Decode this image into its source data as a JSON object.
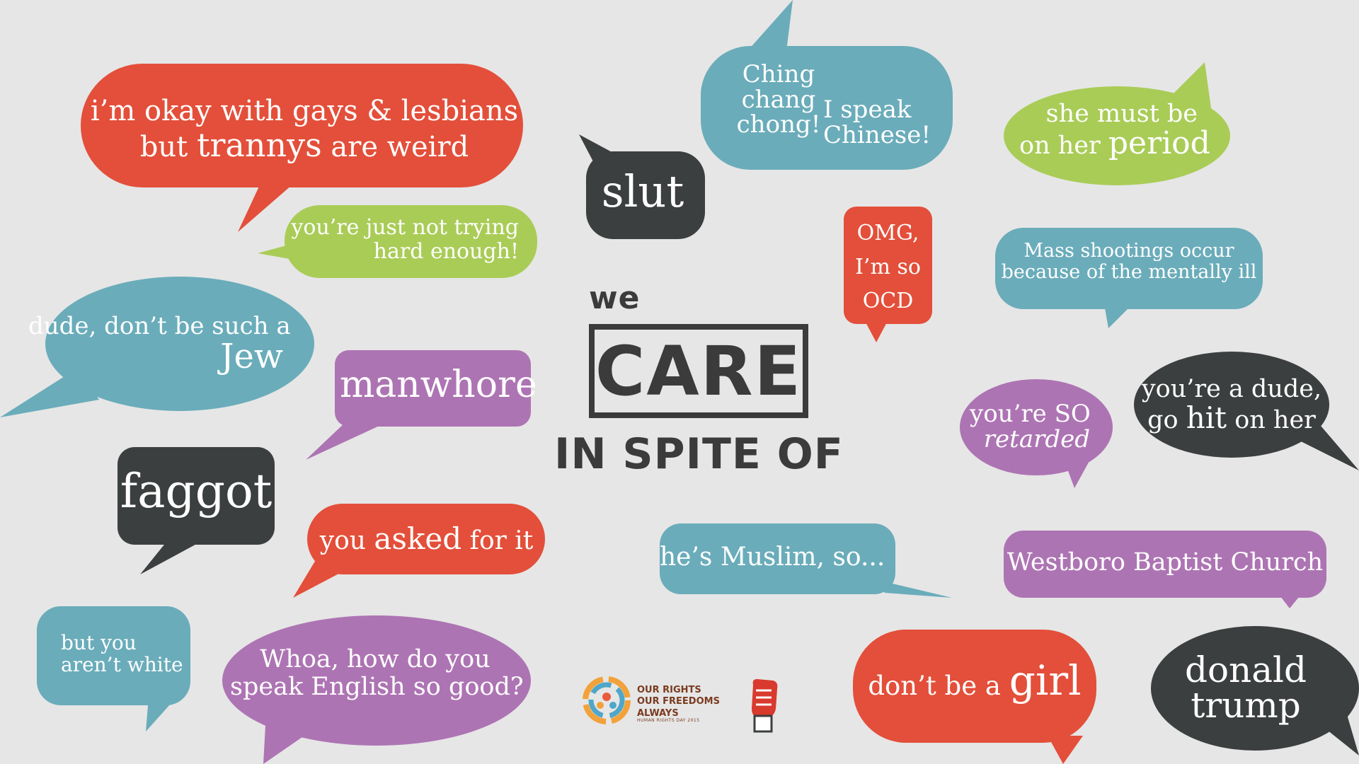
{
  "slogan": {
    "we": "we",
    "care": "CARE",
    "in_spite_of": "IN SPITE OF"
  },
  "bubbles": {
    "trannys": {
      "line1": "i’m okay with gays & lesbians",
      "line2_pre": "but ",
      "line2_big": "trannys",
      "line2_post": " are weird"
    },
    "trying": {
      "line1": "you’re just not trying",
      "line2": "hard enough!"
    },
    "jew": {
      "line1": "dude, don’t be such a",
      "line2": "Jew"
    },
    "manwhore": {
      "text": "manwhore"
    },
    "faggot": {
      "text": "faggot"
    },
    "asked": {
      "pre": "you ",
      "big": "asked",
      "post": " for it"
    },
    "white": {
      "line1": "but you",
      "line2": "aren’t white"
    },
    "english": {
      "line1": "Whoa, how do you",
      "line2": "speak English so good?"
    },
    "slut": {
      "text": "slut"
    },
    "ching": {
      "line1": "Ching",
      "line2": "chang",
      "line3": "chong!"
    },
    "chinese": {
      "line1": "I speak",
      "line2": "Chinese!"
    },
    "ocd": {
      "line1": "OMG,",
      "line2": "I’m so",
      "line3": "OCD"
    },
    "period": {
      "line1": "she must be",
      "line2_pre": "on her ",
      "line2_big": "period"
    },
    "shootings": {
      "line1": "Mass shootings occur",
      "line2": "because of the mentally ill"
    },
    "retarded": {
      "line1": "you’re SO",
      "line2": "retarded"
    },
    "dude": {
      "line1": "you’re a dude,",
      "line2_pre": "go ",
      "line2_big": "hit",
      "line2_post": " on her"
    },
    "muslim": {
      "text": "he’s Muslim, so..."
    },
    "westboro": {
      "text": "Westboro Baptist Church"
    },
    "girl": {
      "pre": "don’t be a ",
      "big": "girl"
    },
    "trump": {
      "line1": "donald",
      "line2": "trump"
    }
  },
  "logos": {
    "org_line1": "OUR RIGHTS",
    "org_line2": "OUR FREEDOMS",
    "org_line3": "ALWAYS",
    "org_sub": "HUMAN RIGHTS DAY 2015"
  },
  "colors": {
    "background": "#e6e6e6",
    "red": "#e34f3a",
    "green": "#a9cc57",
    "teal": "#6aacba",
    "purple": "#ad74b3",
    "dark": "#3c3f3f",
    "text_dark": "#3b3b3b"
  }
}
